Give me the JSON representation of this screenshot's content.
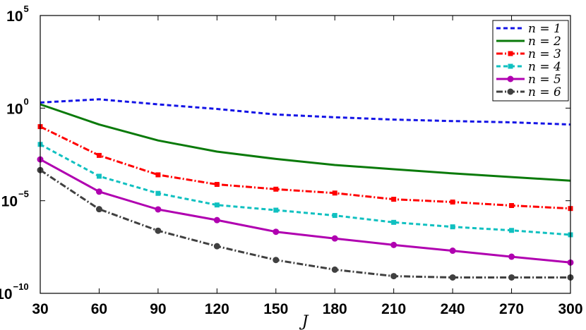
{
  "chart_data": {
    "type": "line",
    "title": "",
    "xlabel": "J",
    "ylabel": "",
    "yscale": "log",
    "xlim": [
      30,
      300
    ],
    "ylim": [
      1e-10,
      100000.0
    ],
    "x": [
      30,
      60,
      90,
      120,
      150,
      180,
      210,
      240,
      270,
      300
    ],
    "xtick_labels": [
      "30",
      "60",
      "90",
      "120",
      "150",
      "180",
      "210",
      "240",
      "270",
      "300"
    ],
    "yticks": [
      {
        "value": 100000.0,
        "base": "10",
        "exp": "5"
      },
      {
        "value": 1.0,
        "base": "10",
        "exp": "0"
      },
      {
        "value": 1e-05,
        "base": "10",
        "exp": "−5"
      },
      {
        "value": 1e-10,
        "base": "10",
        "exp": "−10"
      }
    ],
    "legend_position": "top-right",
    "series": [
      {
        "name": "n = 1",
        "color": "#1414e6",
        "dash": "6,4",
        "marker": "none",
        "values": [
          2.0,
          3.0,
          1.6,
          0.9,
          0.45,
          0.32,
          0.24,
          0.2,
          0.17,
          0.13
        ]
      },
      {
        "name": "n = 2",
        "color": "#0a7a0a",
        "dash": "",
        "marker": "none",
        "values": [
          1.6,
          0.13,
          0.018,
          0.0045,
          0.0018,
          0.00085,
          0.0005,
          0.0003,
          0.00019,
          0.00012
        ]
      },
      {
        "name": "n = 3",
        "color": "#ff0000",
        "dash": "9,3,2,3",
        "marker": "square",
        "values": [
          0.1,
          0.0028,
          0.00025,
          7.6e-05,
          4.2e-05,
          2.6e-05,
          1.2e-05,
          8.5e-06,
          5.5e-06,
          3.8e-06
        ]
      },
      {
        "name": "n = 4",
        "color": "#10c0c0",
        "dash": "6,4",
        "marker": "square",
        "values": [
          0.011,
          0.00021,
          2.5e-05,
          5.9e-06,
          3.1e-06,
          1.6e-06,
          6.8e-07,
          3.9e-07,
          2.5e-07,
          1.45e-07
        ]
      },
      {
        "name": "n = 5",
        "color": "#b000b0",
        "dash": "",
        "marker": "circle",
        "values": [
          0.0017,
          3.1e-05,
          3.4e-06,
          9e-07,
          2.1e-07,
          9.2e-08,
          4.1e-08,
          2e-08,
          9.5e-09,
          4.6e-09
        ]
      },
      {
        "name": "n = 6",
        "color": "#404040",
        "dash": "9,3,2,3",
        "marker": "circle",
        "values": [
          0.00045,
          3.5e-06,
          2.4e-07,
          3.5e-08,
          6.3e-09,
          1.9e-09,
          8.5e-10,
          7.2e-10,
          7.2e-10,
          7.2e-10
        ]
      }
    ]
  }
}
